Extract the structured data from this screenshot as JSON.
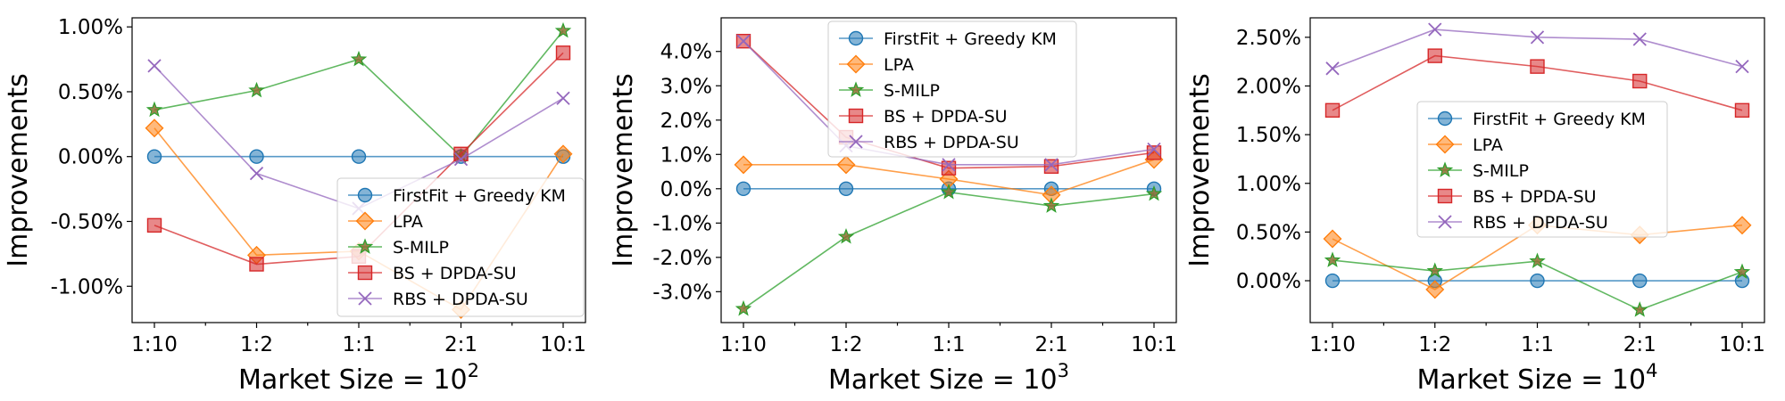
{
  "figure": {
    "title": ""
  },
  "series_styles": [
    {
      "name": "FirstFit + Greedy KM",
      "color": "#1f77b4",
      "marker": "circle"
    },
    {
      "name": "LPA",
      "color": "#ff7f0e",
      "marker": "diamond"
    },
    {
      "name": "S-MILP",
      "color": "#2ca02c",
      "marker": "star"
    },
    {
      "name": "BS + DPDA-SU",
      "color": "#d62728",
      "marker": "square"
    },
    {
      "name": "RBS + DPDA-SU",
      "color": "#9467bd",
      "marker": "x"
    }
  ],
  "chart_data": [
    {
      "type": "line",
      "categories": [
        "1:10",
        "1:2",
        "1:1",
        "2:1",
        "10:1"
      ],
      "xlabel_base": "Market Size = 10",
      "xlabel_exp": "2",
      "ylabel": "Improvements",
      "ylim": [
        -1.28,
        1.07
      ],
      "yticks": [
        1.0,
        0.5,
        0.0,
        -0.5,
        -1.0
      ],
      "ytick_labels": [
        "1.00%",
        "0.50%",
        "0.00%",
        "-0.50%",
        "-1.00%"
      ],
      "legend_position": "lower-right",
      "series": [
        {
          "name": "FirstFit + Greedy KM",
          "values": [
            0.0,
            0.0,
            0.0,
            0.0,
            0.0
          ]
        },
        {
          "name": "LPA",
          "values": [
            0.22,
            -0.76,
            -0.73,
            -1.18,
            0.02
          ]
        },
        {
          "name": "S-MILP",
          "values": [
            0.36,
            0.51,
            0.75,
            0.0,
            0.97
          ]
        },
        {
          "name": "BS + DPDA-SU",
          "values": [
            -0.53,
            -0.83,
            -0.77,
            0.02,
            0.8
          ]
        },
        {
          "name": "RBS + DPDA-SU",
          "values": [
            0.7,
            -0.13,
            -0.4,
            -0.02,
            0.45
          ]
        }
      ]
    },
    {
      "type": "line",
      "categories": [
        "1:10",
        "1:2",
        "1:1",
        "2:1",
        "10:1"
      ],
      "xlabel_base": "Market Size = 10",
      "xlabel_exp": "3",
      "ylabel": "Improvements",
      "ylim": [
        -3.9,
        4.98
      ],
      "yticks": [
        4.0,
        3.0,
        2.0,
        1.0,
        0.0,
        -1.0,
        -2.0,
        -3.0
      ],
      "ytick_labels": [
        "4.0%",
        "3.0%",
        "2.0%",
        "1.0%",
        "0.0%",
        "-1.0%",
        "-2.0%",
        "-3.0%"
      ],
      "legend_position": "upper-center",
      "series": [
        {
          "name": "FirstFit + Greedy KM",
          "values": [
            0.0,
            0.0,
            0.0,
            0.0,
            0.0
          ]
        },
        {
          "name": "LPA",
          "values": [
            0.7,
            0.7,
            0.28,
            -0.18,
            0.85
          ]
        },
        {
          "name": "S-MILP",
          "values": [
            -3.5,
            -1.4,
            -0.1,
            -0.5,
            -0.15
          ]
        },
        {
          "name": "BS + DPDA-SU",
          "values": [
            4.3,
            1.5,
            0.6,
            0.65,
            1.05
          ]
        },
        {
          "name": "RBS + DPDA-SU",
          "values": [
            4.3,
            1.25,
            0.7,
            0.7,
            1.15
          ]
        }
      ]
    },
    {
      "type": "line",
      "categories": [
        "1:10",
        "1:2",
        "1:1",
        "2:1",
        "10:1"
      ],
      "xlabel_base": "Market Size = 10",
      "xlabel_exp": "4",
      "ylabel": "Improvements",
      "ylim": [
        -0.43,
        2.7
      ],
      "yticks": [
        2.5,
        2.0,
        1.5,
        1.0,
        0.5,
        0.0
      ],
      "ytick_labels": [
        "2.50%",
        "2.00%",
        "1.50%",
        "1.00%",
        "0.50%",
        "0.00%"
      ],
      "legend_position": "center",
      "series": [
        {
          "name": "FirstFit + Greedy KM",
          "values": [
            0.0,
            0.0,
            0.0,
            0.0,
            0.0
          ]
        },
        {
          "name": "LPA",
          "values": [
            0.43,
            -0.09,
            0.57,
            0.47,
            0.57
          ]
        },
        {
          "name": "S-MILP",
          "values": [
            0.21,
            0.1,
            0.2,
            -0.3,
            0.09
          ]
        },
        {
          "name": "BS + DPDA-SU",
          "values": [
            1.75,
            2.31,
            2.2,
            2.05,
            1.75
          ]
        },
        {
          "name": "RBS + DPDA-SU",
          "values": [
            2.18,
            2.58,
            2.5,
            2.48,
            2.2
          ]
        }
      ]
    }
  ]
}
